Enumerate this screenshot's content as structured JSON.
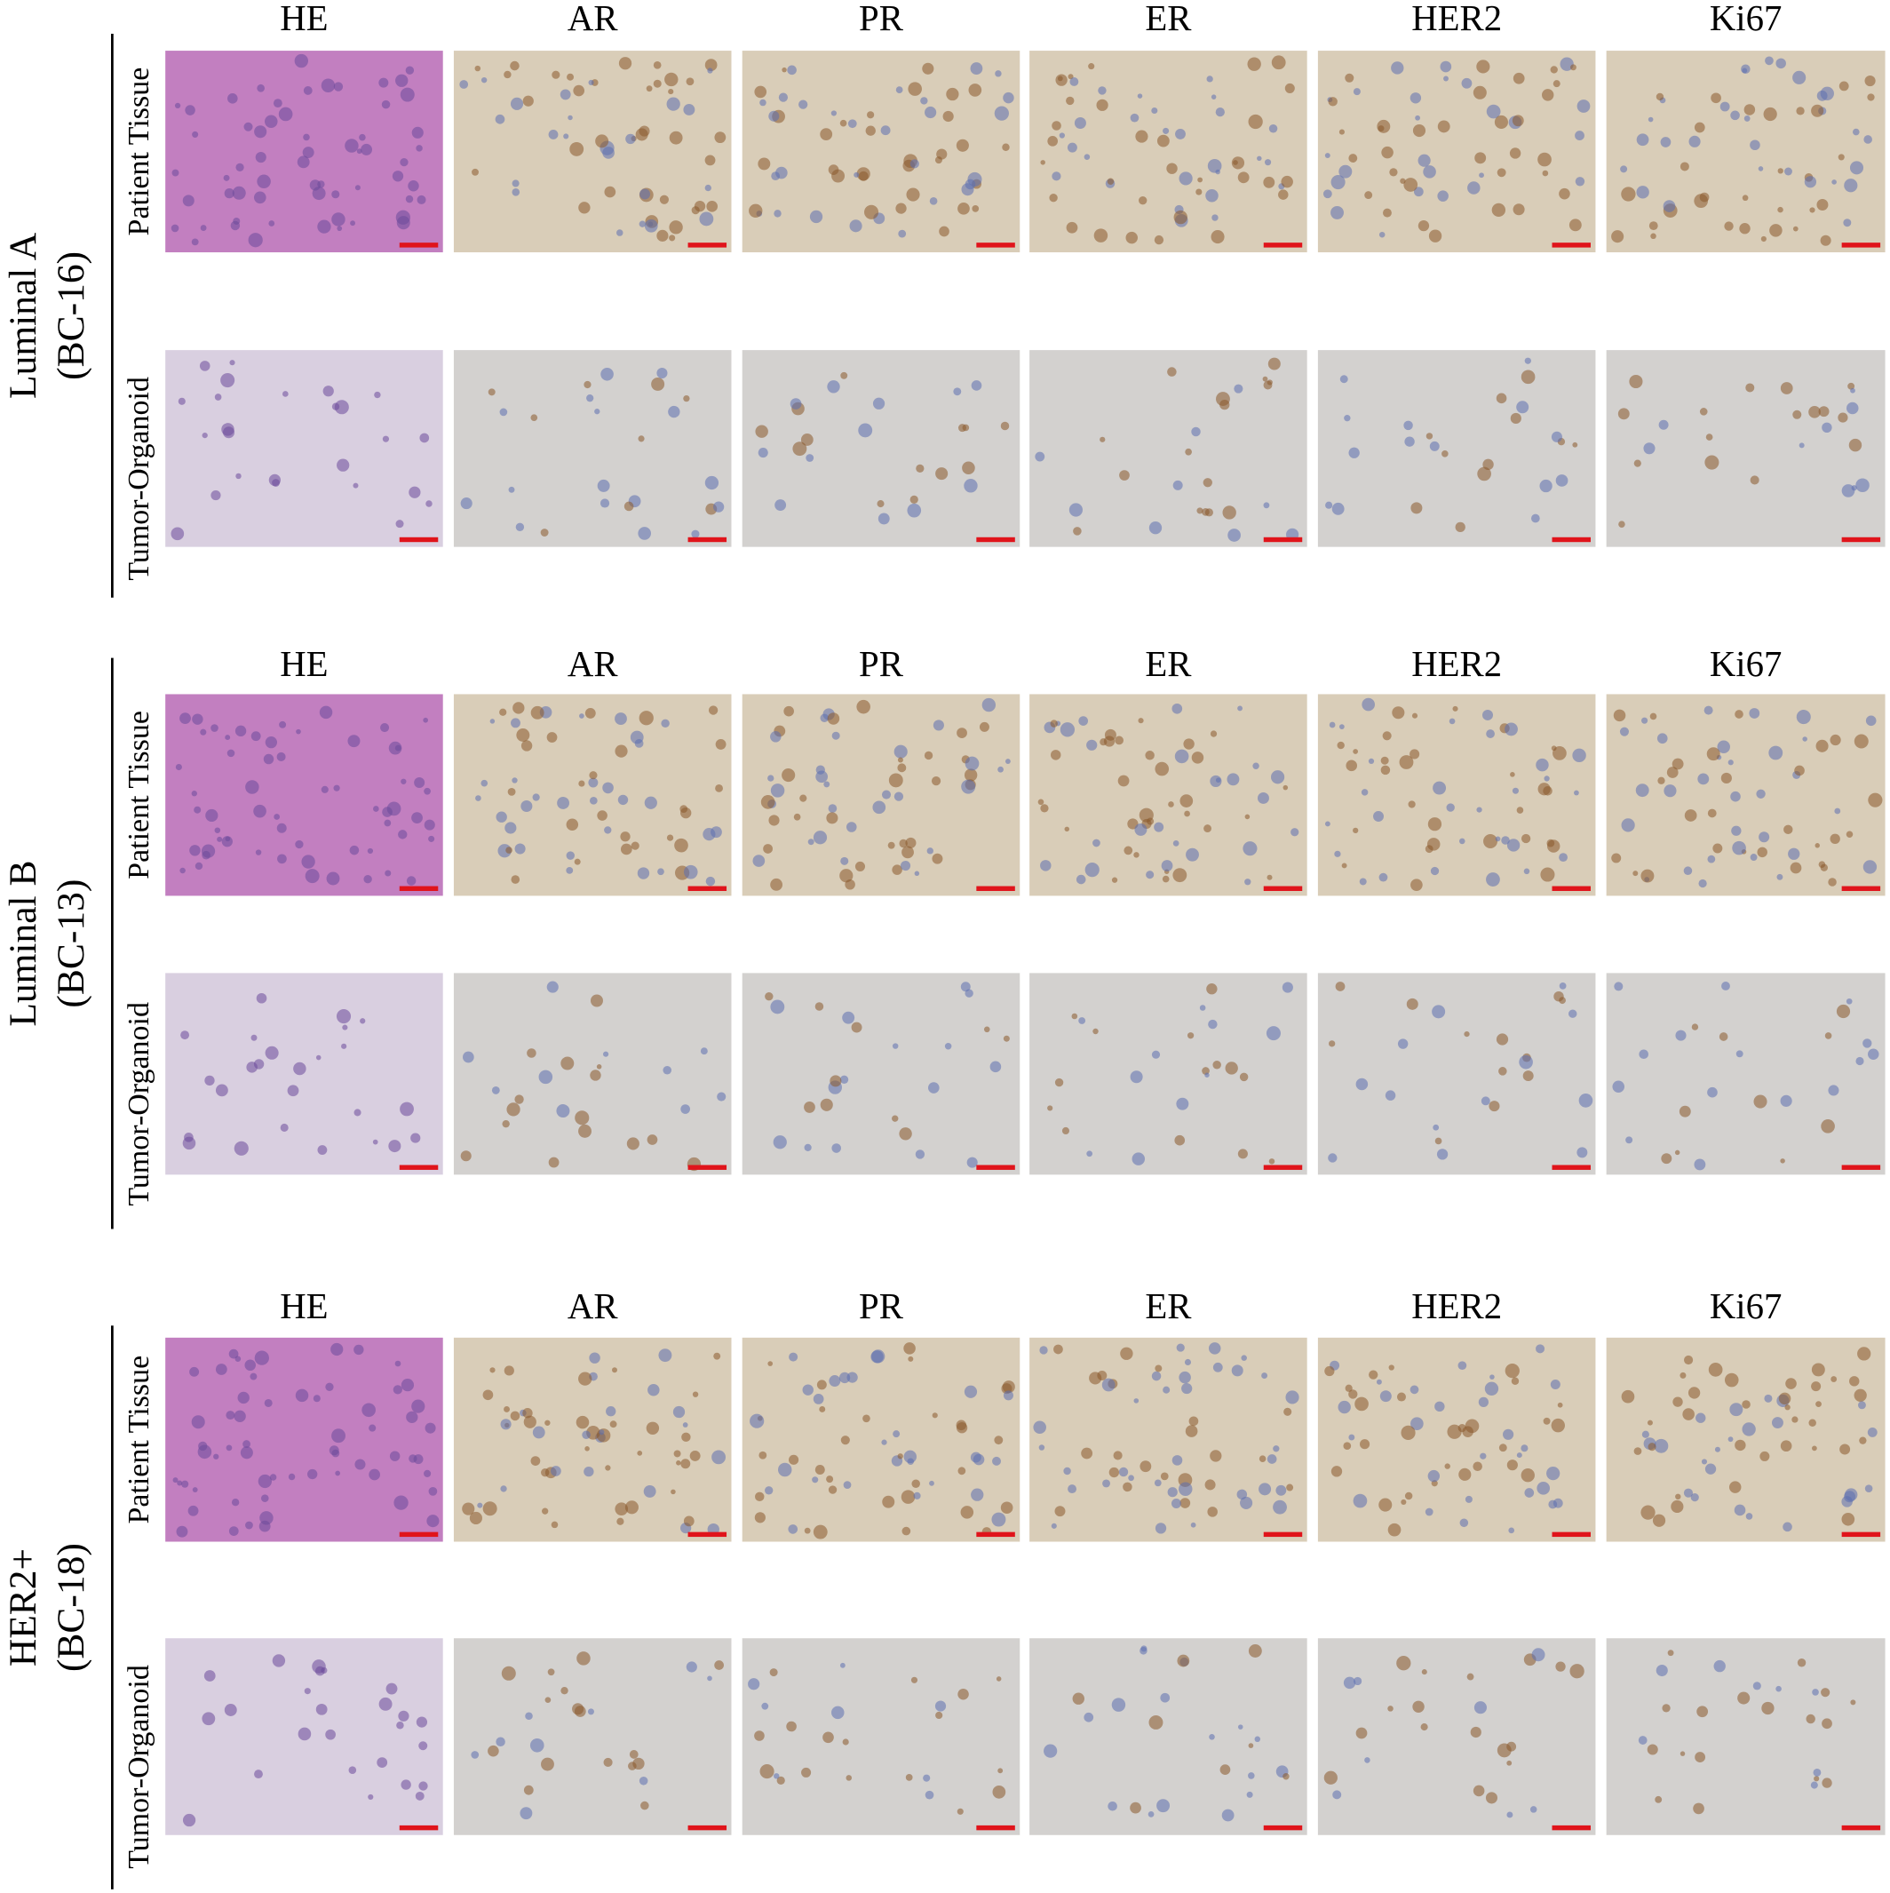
{
  "groups": [
    {
      "label": [
        "Luminal A",
        "(BC-16)"
      ],
      "columns": [
        "HE",
        "AR",
        "PR",
        "ER",
        "HER2",
        "Ki67"
      ],
      "rows": [
        "Patient Tissue",
        "Tumor-Organoid"
      ]
    },
    {
      "label": [
        "Luminal B",
        "(BC-13)"
      ],
      "columns": [
        "HE",
        "AR",
        "PR",
        "ER",
        "HER2",
        "Ki67"
      ],
      "rows": [
        "Patient Tissue",
        "Tumor-Organoid"
      ]
    },
    {
      "label": [
        "HER2+",
        "(BC-18)"
      ],
      "columns": [
        "HE",
        "AR",
        "PR",
        "ER",
        "HER2",
        "Ki67"
      ],
      "rows": [
        "Patient Tissue",
        "Tumor-Organoid"
      ]
    }
  ]
}
